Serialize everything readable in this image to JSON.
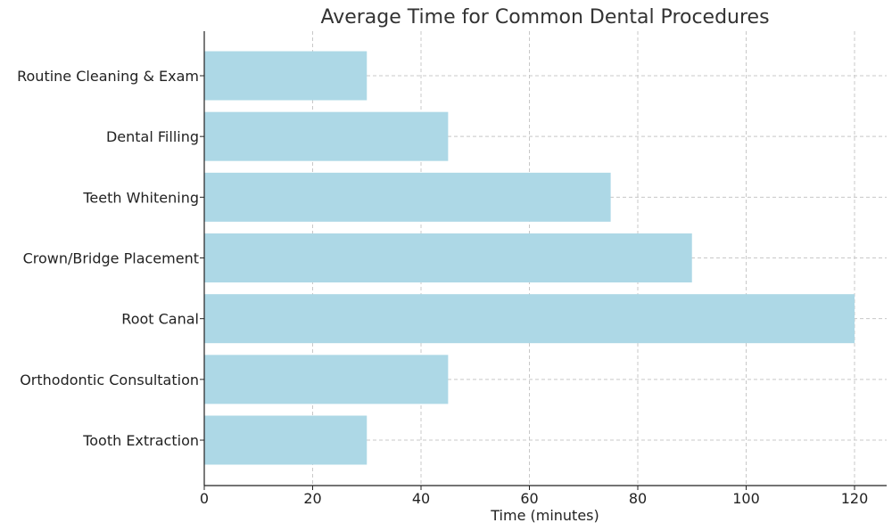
{
  "chart_data": {
    "type": "bar",
    "orientation": "horizontal",
    "title": "Average Time for Common Dental Procedures",
    "xlabel": "Time (minutes)",
    "ylabel": "",
    "categories": [
      "Routine Cleaning & Exam",
      "Dental Filling",
      "Teeth Whitening",
      "Crown/Bridge Placement",
      "Root Canal",
      "Orthodontic Consultation",
      "Tooth Extraction"
    ],
    "values": [
      30,
      45,
      75,
      90,
      120,
      45,
      30
    ],
    "xlim": [
      0,
      126
    ],
    "xticks": [
      0,
      20,
      40,
      60,
      80,
      100,
      120
    ],
    "grid": true,
    "bar_color": "#add8e6"
  }
}
